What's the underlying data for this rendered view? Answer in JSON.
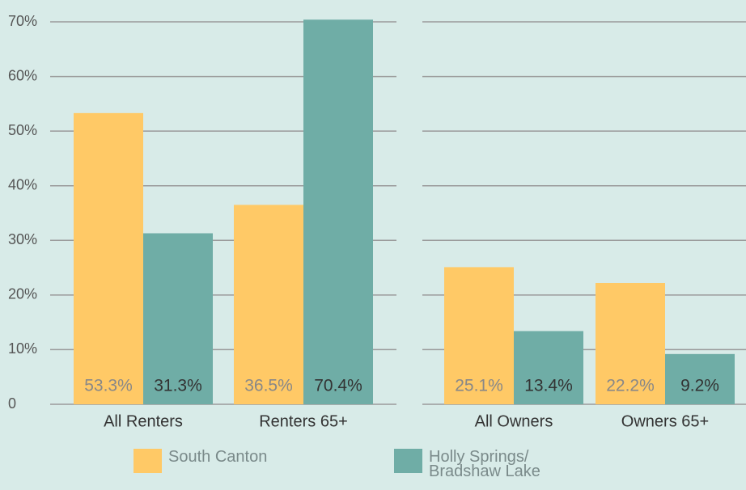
{
  "chart_data": {
    "type": "bar",
    "categories": [
      "All Renters",
      "Renters 65+",
      "All Owners",
      "Owners 65+"
    ],
    "series": [
      {
        "name": "South Canton",
        "color": "#ffc966",
        "values": [
          53.3,
          36.5,
          25.1,
          22.2
        ],
        "value_labels": [
          "53.3%",
          "36.5%",
          "25.1%",
          "22.2%"
        ]
      },
      {
        "name": "Holly Springs/ Bradshaw Lake",
        "color": "#6fada6",
        "values": [
          31.3,
          70.4,
          13.4,
          9.2
        ],
        "value_labels": [
          "31.3%",
          "70.4%",
          "13.4%",
          "9.2%"
        ]
      }
    ],
    "ylim": [
      0,
      72
    ],
    "yticks": [
      0,
      {
        "value": 10,
        "label": "10%"
      },
      {
        "value": 20,
        "label": "20%"
      },
      {
        "value": 30,
        "label": "30%"
      },
      {
        "value": 40,
        "label": "40%"
      },
      {
        "value": 50,
        "label": "50%"
      },
      {
        "value": 60,
        "label": "60%"
      },
      {
        "value": 70,
        "label": "70%"
      }
    ],
    "grid": true
  }
}
